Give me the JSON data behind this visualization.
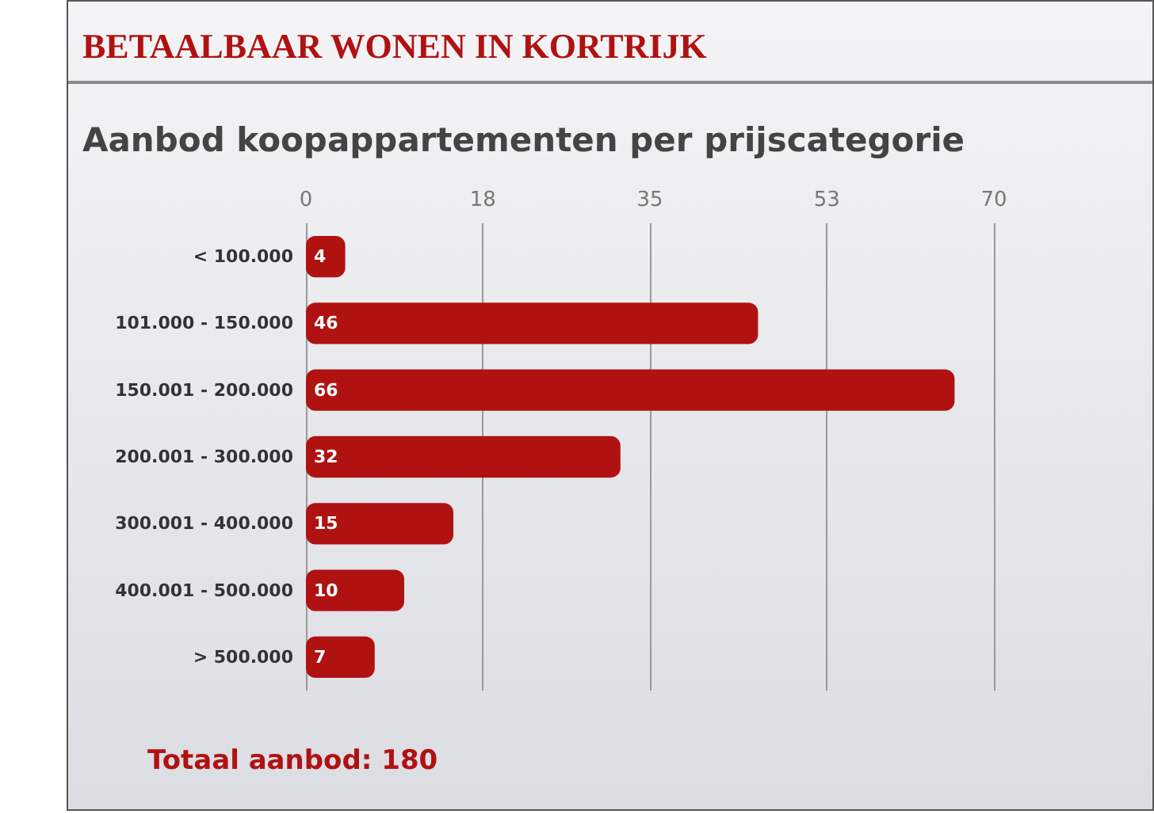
{
  "chart_data": {
    "type": "bar",
    "orientation": "horizontal",
    "title": "BETAALBAAR WONEN IN KORTRIJK",
    "subtitle": "Aanbod koopappartementen per prijscategorie",
    "categories": [
      "< 100.000",
      "101.000 - 150.000",
      "150.001 - 200.000",
      "200.001 - 300.000",
      "300.001 - 400.000",
      "400.001 - 500.000",
      "> 500.000"
    ],
    "values": [
      4,
      46,
      66,
      32,
      15,
      10,
      7
    ],
    "color": "#b01212",
    "xlim": [
      0,
      70
    ],
    "xticks": [
      0,
      18,
      35,
      53,
      70
    ],
    "grid": "x",
    "data_labels": true,
    "annotations": [
      "Totaal aanbod: 180"
    ]
  }
}
